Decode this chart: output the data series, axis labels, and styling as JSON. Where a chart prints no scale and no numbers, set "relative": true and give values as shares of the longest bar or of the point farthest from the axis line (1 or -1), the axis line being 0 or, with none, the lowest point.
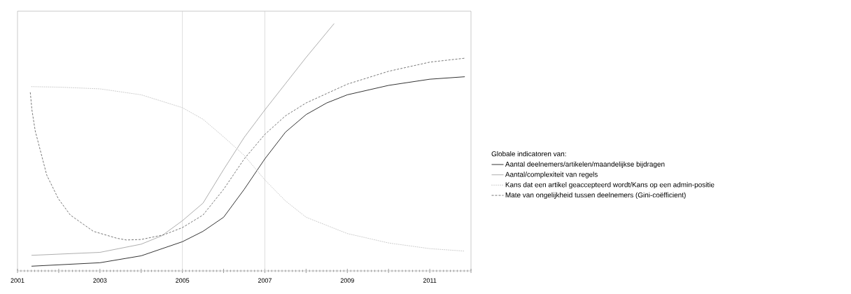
{
  "chart_data": {
    "type": "line",
    "relative": true,
    "legend_title": "Globale indicatoren van:",
    "legend": "right",
    "grid": false,
    "marker": "none",
    "xlim": [
      2001,
      2012
    ],
    "xticks": [
      2001,
      {
        "value": 2002,
        "label": null
      },
      2003,
      {
        "value": 2004,
        "label": null
      },
      2005,
      {
        "value": 2006,
        "label": null
      },
      2007,
      {
        "value": 2008,
        "label": null
      },
      2009,
      {
        "value": 2010,
        "label": null
      },
      2011,
      {
        "value": 2012,
        "label": null
      }
    ],
    "ref_lines": [
      {
        "axis": "x",
        "value": 2005,
        "color": "#c8c8c8"
      },
      {
        "axis": "x",
        "value": 2007,
        "color": "#c8c8c8"
      }
    ],
    "series": [
      {
        "name": "Aantal deelnemers/artikelen/maandelijkse bijdragen",
        "color": "#000000",
        "line_style": "solid",
        "x": [
          2001.34,
          2003,
          2004,
          2005,
          2005.5,
          2006,
          2006.5,
          2007,
          2007.5,
          2008,
          2008.5,
          2009,
          2010,
          2011,
          2011.85
        ],
        "values": [
          0.019,
          0.033,
          0.061,
          0.118,
          0.16,
          0.217,
          0.33,
          0.453,
          0.561,
          0.632,
          0.679,
          0.712,
          0.75,
          0.775,
          0.785
        ]
      },
      {
        "name": "Aantal/complexiteit van regels",
        "color": "#999999",
        "line_style": "solid",
        "x": [
          2001.34,
          2003,
          2004,
          2004.5,
          2005,
          2005.5,
          2006,
          2006.5,
          2007,
          2008,
          2008.68
        ],
        "values": [
          0.063,
          0.075,
          0.108,
          0.142,
          0.203,
          0.274,
          0.41,
          0.54,
          0.651,
          0.863,
          1
        ]
      },
      {
        "name": "Kans dat een artikel geaccepteerd wordt/Kans op een admin-positie",
        "color": "#bbbbbb",
        "line_style": "dotted",
        "x": [
          2001.34,
          2002,
          2003,
          2004,
          2005,
          2005.5,
          2006,
          2006.5,
          2007,
          2007.5,
          2008,
          2009,
          2010,
          2011,
          2011.85
        ],
        "values": [
          0.745,
          0.743,
          0.736,
          0.712,
          0.66,
          0.613,
          0.542,
          0.467,
          0.368,
          0.283,
          0.217,
          0.151,
          0.113,
          0.09,
          0.08
        ]
      },
      {
        "name": "Mate van ongelijkheid tussen deelnemers (Gini-coëfficient)",
        "color": "#555555",
        "line_style": "dashed",
        "x": [
          2001.31,
          2001.35,
          2001.43,
          2001.71,
          2001.99,
          2002.28,
          2002.84,
          2003.41,
          2003.64,
          2004,
          2004.55,
          2005,
          2005.5,
          2006,
          2006.5,
          2007,
          2007.5,
          2008,
          2009,
          2010,
          2011,
          2011.85
        ],
        "values": [
          0.722,
          0.651,
          0.566,
          0.387,
          0.292,
          0.226,
          0.16,
          0.132,
          0.125,
          0.127,
          0.146,
          0.175,
          0.226,
          0.33,
          0.453,
          0.552,
          0.627,
          0.679,
          0.755,
          0.807,
          0.844,
          0.86
        ]
      }
    ]
  }
}
